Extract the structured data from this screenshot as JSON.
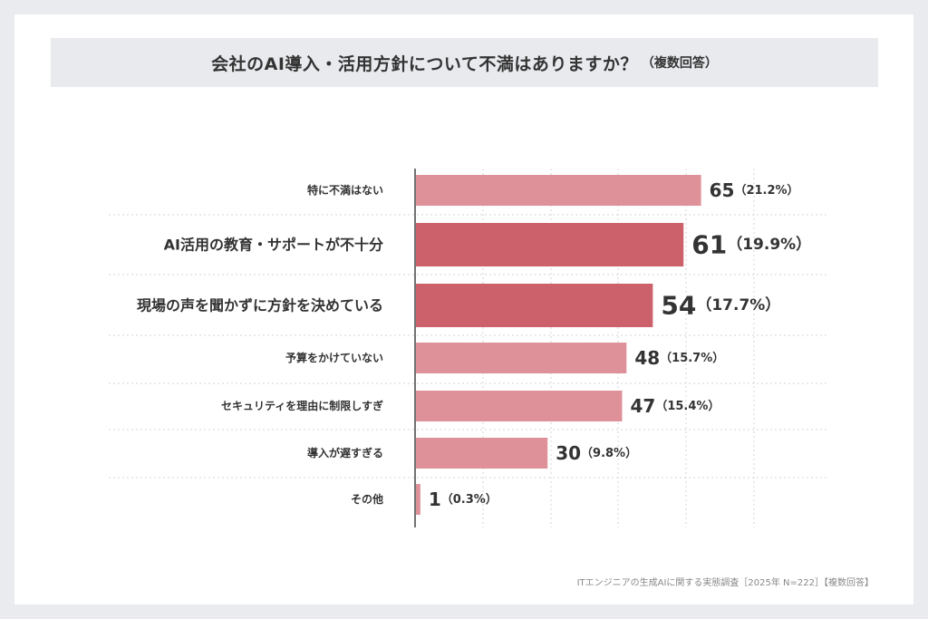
{
  "header": {
    "title": "会社のAI導入・活用方針について不満はありますか？",
    "title_note": "（複数回答）"
  },
  "footer": {
    "source": "ITエンジニアの生成AIに関する実態調査［2025年 N=222］【複数回答】"
  },
  "colors": {
    "bar_normal": "#de9198",
    "bar_highlight": "#cc616c",
    "text": "#333333",
    "axis": "#444444",
    "grid": "#d6d6d6"
  },
  "chart_data": {
    "type": "bar",
    "orientation": "horizontal",
    "categories": [
      "特に不満はない",
      "AI活用の教育・サポートが不十分",
      "現場の声を聞かずに方針を決めている",
      "予算をかけていない",
      "セキュリティを理由に制限しすぎ",
      "導入が遅すぎる",
      "その他"
    ],
    "values": [
      65,
      61,
      54,
      48,
      47,
      30,
      1
    ],
    "percent_labels": [
      "（21.2%）",
      "（19.9%）",
      "（17.7%）",
      "（15.7%）",
      "（15.4%）",
      "（9.8%）",
      "（0.3%）"
    ],
    "highlighted": [
      false,
      true,
      true,
      false,
      false,
      false,
      false
    ],
    "xlim": [
      0,
      95
    ],
    "grid": true,
    "title": "会社のAI導入・活用方針について不満はありますか？"
  }
}
